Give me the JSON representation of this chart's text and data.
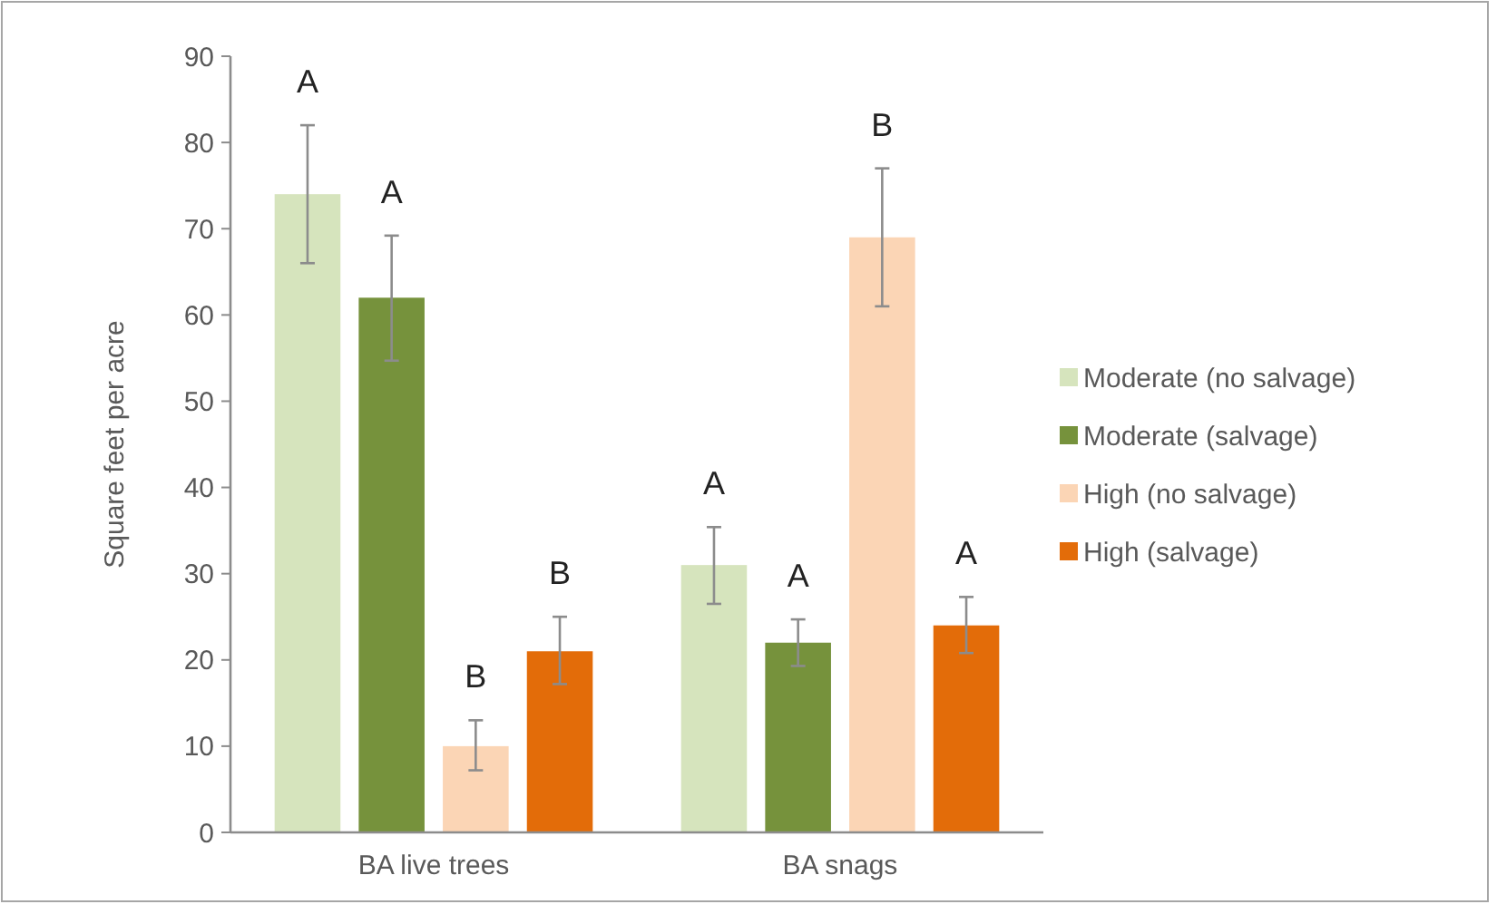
{
  "chart_data": {
    "type": "bar",
    "ylabel": "Square feet per acre",
    "categories": [
      "BA live trees",
      "BA snags"
    ],
    "series": [
      {
        "name": "Moderate (no salvage)",
        "color": "#d6e4bd",
        "values": [
          74,
          31
        ],
        "errors": [
          [
            66,
            82
          ],
          [
            26.5,
            35.4
          ]
        ]
      },
      {
        "name": "Moderate (salvage)",
        "color": "#76923c",
        "values": [
          62,
          22
        ],
        "errors": [
          [
            54.7,
            69.2
          ],
          [
            19.3,
            24.7
          ]
        ]
      },
      {
        "name": "High (no salvage)",
        "color": "#fbd5b5",
        "values": [
          10,
          69
        ],
        "errors": [
          [
            7.2,
            13
          ],
          [
            61,
            77
          ]
        ]
      },
      {
        "name": "High (salvage)",
        "color": "#e36c09",
        "values": [
          21,
          24
        ],
        "errors": [
          [
            17.2,
            25
          ],
          [
            20.8,
            27.3
          ]
        ]
      }
    ],
    "ylim": [
      0,
      90
    ],
    "yticks": [
      0,
      10,
      20,
      30,
      40,
      50,
      60,
      70,
      80,
      90
    ],
    "grid": false,
    "legend": "right",
    "annotations": [
      "A",
      "A",
      "B",
      "B",
      "A",
      "A",
      "B",
      "A"
    ]
  }
}
